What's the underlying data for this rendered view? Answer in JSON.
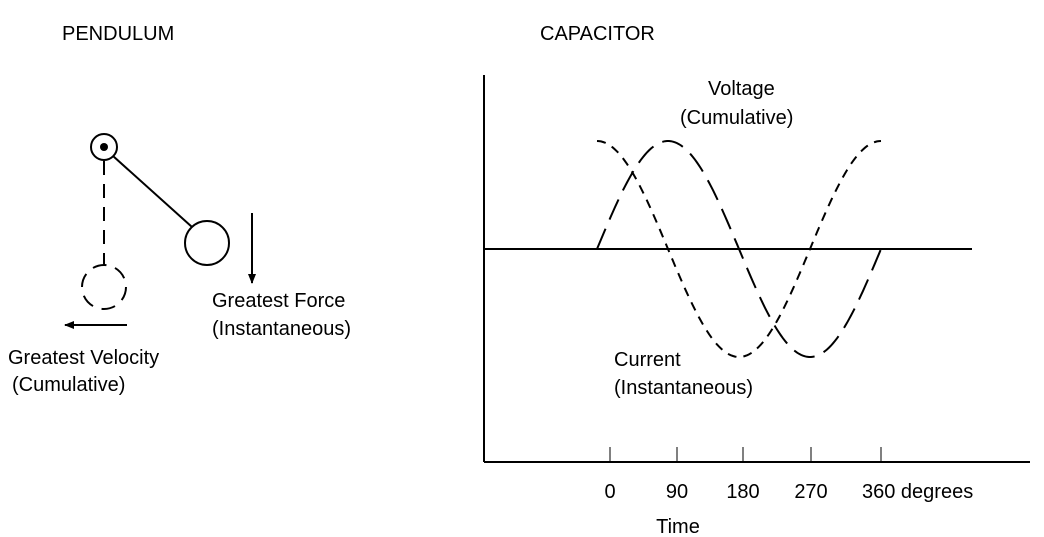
{
  "pendulum": {
    "title": "PENDULUM",
    "force_label": [
      "Greatest Force",
      "(Instantaneous)"
    ],
    "velocity_label": [
      "Greatest Velocity",
      "(Cumulative)"
    ]
  },
  "capacitor": {
    "title": "CAPACITOR",
    "voltage_label": [
      "Voltage",
      "(Cumulative)"
    ],
    "current_label": [
      "Current",
      "(Instantaneous)"
    ],
    "x_tick_labels": [
      "0",
      "90",
      "180",
      "270",
      "360 degrees"
    ],
    "x_axis_label": "Time"
  }
}
